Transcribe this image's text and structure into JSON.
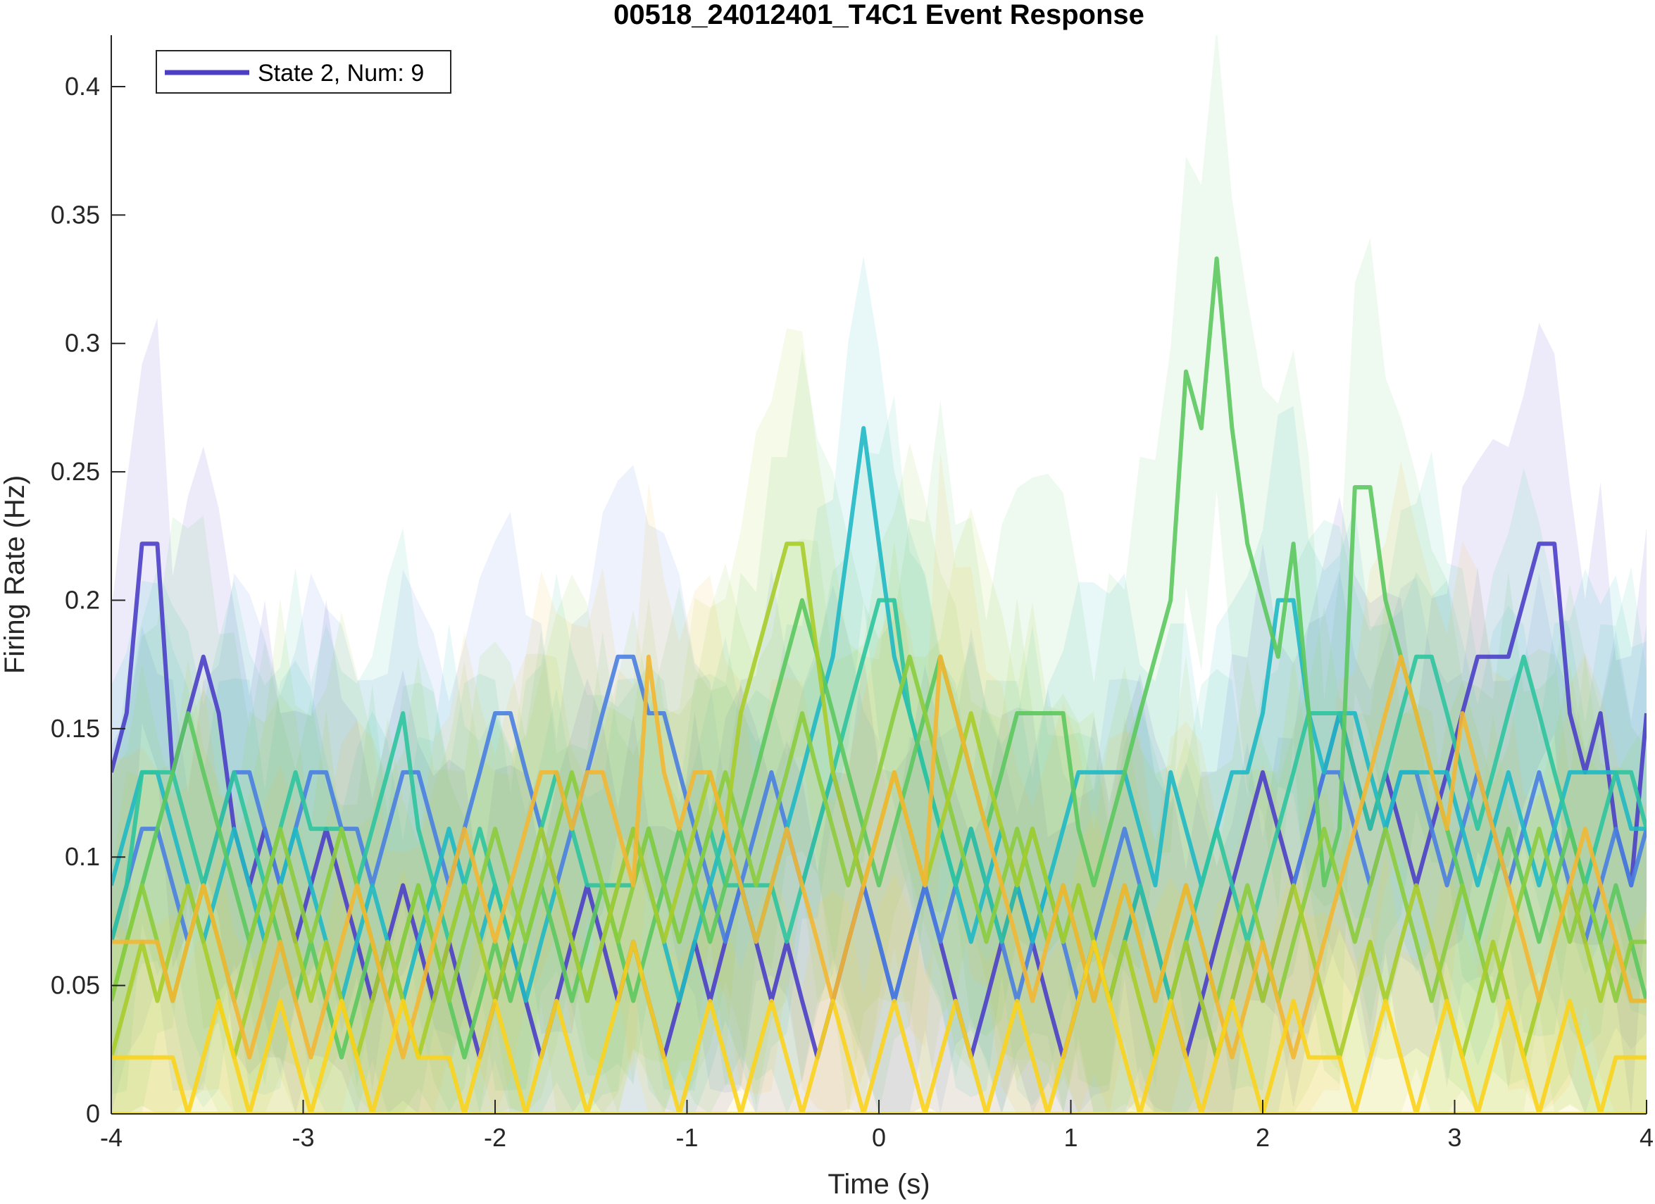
{
  "chart_data": {
    "type": "line",
    "title": "00518_24012401_T4C1 Event Response",
    "xlabel": "Time (s)",
    "ylabel": "Firing Rate (Hz)",
    "xlim": [
      -4,
      4
    ],
    "ylim": [
      0,
      0.42
    ],
    "xticks": [
      -4,
      -3,
      -2,
      -1,
      0,
      1,
      2,
      3,
      4
    ],
    "xtick_labels": [
      "-4",
      "-3",
      "-2",
      "-1",
      "0",
      "1",
      "2",
      "3",
      "4"
    ],
    "yticks": [
      0,
      0.05,
      0.1,
      0.15,
      0.2,
      0.25,
      0.3,
      0.35,
      0.4
    ],
    "ytick_labels": [
      "0",
      "0.05",
      "0.1",
      "0.15",
      "0.2",
      "0.25",
      "0.3",
      "0.35",
      "0.4"
    ],
    "grid": false,
    "legend": {
      "placement": "top-left",
      "entries": [
        {
          "label": "State 2, Num: 9",
          "color": "#4b3fc6"
        }
      ]
    },
    "series": [
      {
        "color": "#4b3fc6",
        "band": 0.09,
        "values": [
          0.133,
          0.156,
          0.222,
          0.222,
          0.133,
          0.156,
          0.178,
          0.156,
          0.111,
          0.089,
          0.111,
          0.089,
          0.067,
          0.089,
          0.111,
          0.089,
          0.067,
          0.044,
          0.067,
          0.089,
          0.067,
          0.044,
          0.067,
          0.044,
          0.022,
          0.044,
          0.067,
          0.044,
          0.022,
          0.044,
          0.067,
          0.089,
          0.067,
          0.044,
          0.067,
          0.044,
          0.022,
          0.044,
          0.067,
          0.044,
          0.067,
          0.089,
          0.067,
          0.044,
          0.067,
          0.044,
          0.022,
          0.044,
          0.067,
          0.089,
          0.067,
          0.044,
          0.067,
          0.089,
          0.067,
          0.044,
          0.022,
          0.044,
          0.067,
          0.089,
          0.067,
          0.044,
          0.022,
          0.044,
          0.067,
          0.044,
          0.067,
          0.089,
          0.067,
          0.044,
          0.022,
          0.044,
          0.067,
          0.089,
          0.111,
          0.133,
          0.111,
          0.089,
          0.111,
          0.133,
          0.156,
          0.133,
          0.111,
          0.133,
          0.111,
          0.089,
          0.111,
          0.133,
          0.156,
          0.178,
          0.178,
          0.178,
          0.2,
          0.222,
          0.222,
          0.156,
          0.133,
          0.156,
          0.111,
          0.089,
          0.156
        ]
      },
      {
        "color": "#4a7fe0",
        "band": 0.08,
        "values": [
          0.067,
          0.089,
          0.111,
          0.111,
          0.089,
          0.067,
          0.089,
          0.111,
          0.133,
          0.133,
          0.111,
          0.089,
          0.111,
          0.133,
          0.133,
          0.111,
          0.111,
          0.089,
          0.111,
          0.133,
          0.133,
          0.111,
          0.089,
          0.111,
          0.133,
          0.156,
          0.156,
          0.133,
          0.111,
          0.089,
          0.111,
          0.133,
          0.156,
          0.178,
          0.178,
          0.156,
          0.156,
          0.133,
          0.111,
          0.089,
          0.067,
          0.089,
          0.111,
          0.133,
          0.111,
          0.089,
          0.111,
          0.133,
          0.111,
          0.089,
          0.067,
          0.044,
          0.067,
          0.089,
          0.067,
          0.089,
          0.111,
          0.089,
          0.067,
          0.044,
          0.067,
          0.089,
          0.067,
          0.044,
          0.067,
          0.089,
          0.111,
          0.089,
          0.067,
          0.044,
          0.067,
          0.044,
          0.022,
          0.044,
          0.067,
          0.044,
          0.067,
          0.089,
          0.111,
          0.133,
          0.133,
          0.111,
          0.089,
          0.111,
          0.133,
          0.133,
          0.111,
          0.089,
          0.111,
          0.133,
          0.111,
          0.089,
          0.111,
          0.133,
          0.111,
          0.089,
          0.067,
          0.089,
          0.111,
          0.089,
          0.111
        ]
      },
      {
        "color": "#20b8c4",
        "band": 0.08,
        "values": [
          0.089,
          0.111,
          0.133,
          0.133,
          0.111,
          0.089,
          0.067,
          0.089,
          0.111,
          0.089,
          0.067,
          0.089,
          0.111,
          0.089,
          0.067,
          0.044,
          0.067,
          0.089,
          0.067,
          0.044,
          0.067,
          0.089,
          0.111,
          0.089,
          0.067,
          0.089,
          0.067,
          0.044,
          0.067,
          0.089,
          0.067,
          0.044,
          0.067,
          0.089,
          0.111,
          0.089,
          0.067,
          0.044,
          0.067,
          0.089,
          0.111,
          0.089,
          0.067,
          0.089,
          0.111,
          0.133,
          0.156,
          0.178,
          0.222,
          0.267,
          0.222,
          0.178,
          0.156,
          0.133,
          0.111,
          0.089,
          0.067,
          0.089,
          0.111,
          0.089,
          0.067,
          0.089,
          0.111,
          0.133,
          0.133,
          0.133,
          0.133,
          0.111,
          0.089,
          0.133,
          0.111,
          0.089,
          0.111,
          0.133,
          0.133,
          0.156,
          0.2,
          0.2,
          0.156,
          0.133,
          0.156,
          0.156,
          0.133,
          0.111,
          0.133,
          0.133,
          0.133,
          0.133,
          0.111,
          0.089,
          0.111,
          0.133,
          0.111,
          0.089,
          0.111,
          0.133,
          0.133,
          0.133,
          0.133,
          0.111,
          0.111
        ]
      },
      {
        "color": "#2fc49e",
        "band": 0.08,
        "values": [
          0.067,
          0.089,
          0.133,
          0.133,
          0.133,
          0.111,
          0.089,
          0.111,
          0.133,
          0.111,
          0.089,
          0.111,
          0.133,
          0.111,
          0.111,
          0.111,
          0.089,
          0.111,
          0.133,
          0.156,
          0.111,
          0.089,
          0.067,
          0.089,
          0.111,
          0.089,
          0.067,
          0.089,
          0.111,
          0.133,
          0.111,
          0.089,
          0.089,
          0.089,
          0.089,
          0.111,
          0.089,
          0.067,
          0.089,
          0.111,
          0.089,
          0.089,
          0.089,
          0.089,
          0.067,
          0.089,
          0.111,
          0.133,
          0.156,
          0.178,
          0.2,
          0.2,
          0.156,
          0.133,
          0.111,
          0.089,
          0.111,
          0.089,
          0.067,
          0.089,
          0.111,
          0.089,
          0.067,
          0.089,
          0.067,
          0.044,
          0.067,
          0.089,
          0.067,
          0.044,
          0.067,
          0.089,
          0.111,
          0.089,
          0.067,
          0.089,
          0.111,
          0.133,
          0.156,
          0.156,
          0.156,
          0.133,
          0.111,
          0.133,
          0.156,
          0.178,
          0.178,
          0.156,
          0.133,
          0.111,
          0.133,
          0.156,
          0.178,
          0.156,
          0.133,
          0.111,
          0.089,
          0.111,
          0.133,
          0.133,
          0.111
        ]
      },
      {
        "color": "#5cc85e",
        "band": 0.1,
        "values": [
          0.044,
          0.067,
          0.089,
          0.111,
          0.133,
          0.156,
          0.133,
          0.111,
          0.089,
          0.067,
          0.089,
          0.067,
          0.044,
          0.067,
          0.044,
          0.022,
          0.044,
          0.067,
          0.044,
          0.067,
          0.089,
          0.067,
          0.044,
          0.022,
          0.044,
          0.067,
          0.044,
          0.067,
          0.089,
          0.067,
          0.044,
          0.067,
          0.089,
          0.067,
          0.044,
          0.067,
          0.089,
          0.111,
          0.089,
          0.067,
          0.089,
          0.111,
          0.133,
          0.156,
          0.178,
          0.2,
          0.178,
          0.156,
          0.133,
          0.111,
          0.089,
          0.111,
          0.133,
          0.156,
          0.178,
          0.156,
          0.133,
          0.111,
          0.133,
          0.156,
          0.156,
          0.156,
          0.156,
          0.111,
          0.089,
          0.111,
          0.133,
          0.156,
          0.178,
          0.2,
          0.289,
          0.267,
          0.333,
          0.267,
          0.222,
          0.2,
          0.178,
          0.222,
          0.156,
          0.089,
          0.111,
          0.244,
          0.244,
          0.2,
          0.178,
          0.156,
          0.133,
          0.111,
          0.089,
          0.067,
          0.089,
          0.111,
          0.089,
          0.067,
          0.089,
          0.111,
          0.089,
          0.067,
          0.089,
          0.067,
          0.044
        ]
      },
      {
        "color": "#8ccc3e",
        "band": 0.09,
        "values": [
          0.044,
          0.067,
          0.089,
          0.067,
          0.044,
          0.067,
          0.089,
          0.067,
          0.044,
          0.067,
          0.089,
          0.111,
          0.089,
          0.067,
          0.089,
          0.111,
          0.089,
          0.067,
          0.044,
          0.067,
          0.089,
          0.067,
          0.044,
          0.067,
          0.089,
          0.111,
          0.089,
          0.067,
          0.089,
          0.111,
          0.133,
          0.111,
          0.089,
          0.067,
          0.089,
          0.111,
          0.089,
          0.067,
          0.089,
          0.111,
          0.133,
          0.111,
          0.089,
          0.111,
          0.133,
          0.156,
          0.133,
          0.111,
          0.089,
          0.111,
          0.133,
          0.156,
          0.178,
          0.156,
          0.133,
          0.111,
          0.089,
          0.067,
          0.089,
          0.111,
          0.089,
          0.067,
          0.089,
          0.067,
          0.044,
          0.067,
          0.089,
          0.067,
          0.044,
          0.067,
          0.089,
          0.067,
          0.044,
          0.067,
          0.089,
          0.067,
          0.044,
          0.067,
          0.089,
          0.111,
          0.089,
          0.067,
          0.089,
          0.111,
          0.089,
          0.067,
          0.044,
          0.067,
          0.089,
          0.067,
          0.044,
          0.067,
          0.089,
          0.111,
          0.089,
          0.067,
          0.089,
          0.067,
          0.044,
          0.067,
          0.067
        ]
      },
      {
        "color": "#a8cc2a",
        "band": 0.09,
        "values": [
          0.022,
          0.044,
          0.067,
          0.044,
          0.067,
          0.089,
          0.067,
          0.044,
          0.022,
          0.044,
          0.067,
          0.089,
          0.067,
          0.044,
          0.067,
          0.044,
          0.022,
          0.044,
          0.067,
          0.044,
          0.022,
          0.044,
          0.067,
          0.089,
          0.067,
          0.044,
          0.067,
          0.089,
          0.111,
          0.089,
          0.067,
          0.044,
          0.067,
          0.089,
          0.111,
          0.089,
          0.067,
          0.089,
          0.111,
          0.133,
          0.111,
          0.156,
          0.178,
          0.2,
          0.222,
          0.222,
          0.178,
          0.133,
          0.111,
          0.089,
          0.111,
          0.133,
          0.111,
          0.089,
          0.111,
          0.133,
          0.156,
          0.133,
          0.111,
          0.089,
          0.111,
          0.089,
          0.067,
          0.089,
          0.067,
          0.044,
          0.067,
          0.044,
          0.022,
          0.044,
          0.067,
          0.044,
          0.022,
          0.044,
          0.067,
          0.044,
          0.067,
          0.089,
          0.067,
          0.044,
          0.022,
          0.044,
          0.067,
          0.044,
          0.067,
          0.089,
          0.067,
          0.044,
          0.022,
          0.044,
          0.067,
          0.044,
          0.022,
          0.044,
          0.067,
          0.089,
          0.067,
          0.044,
          0.067,
          0.044,
          0.044
        ]
      },
      {
        "color": "#f2b733",
        "band": 0.08,
        "values": [
          0.067,
          0.067,
          0.067,
          0.067,
          0.044,
          0.067,
          0.089,
          0.067,
          0.044,
          0.022,
          0.044,
          0.067,
          0.044,
          0.022,
          0.044,
          0.067,
          0.089,
          0.067,
          0.044,
          0.022,
          0.044,
          0.067,
          0.089,
          0.111,
          0.089,
          0.067,
          0.089,
          0.111,
          0.133,
          0.133,
          0.111,
          0.133,
          0.133,
          0.111,
          0.089,
          0.178,
          0.133,
          0.111,
          0.133,
          0.133,
          0.111,
          0.089,
          0.067,
          0.089,
          0.111,
          0.089,
          0.067,
          0.044,
          0.067,
          0.089,
          0.111,
          0.133,
          0.111,
          0.089,
          0.178,
          0.156,
          0.133,
          0.111,
          0.089,
          0.067,
          0.044,
          0.067,
          0.089,
          0.067,
          0.044,
          0.067,
          0.089,
          0.067,
          0.044,
          0.067,
          0.089,
          0.067,
          0.044,
          0.022,
          0.044,
          0.067,
          0.044,
          0.022,
          0.044,
          0.067,
          0.089,
          0.111,
          0.133,
          0.156,
          0.178,
          0.156,
          0.133,
          0.111,
          0.156,
          0.133,
          0.111,
          0.089,
          0.067,
          0.044,
          0.067,
          0.089,
          0.111,
          0.089,
          0.067,
          0.044,
          0.044
        ]
      },
      {
        "color": "#fbd31c",
        "band": 0.06,
        "values": [
          0.022,
          0.022,
          0.022,
          0.022,
          0.022,
          0.0,
          0.022,
          0.044,
          0.022,
          0.0,
          0.022,
          0.044,
          0.022,
          0.0,
          0.022,
          0.044,
          0.022,
          0.0,
          0.022,
          0.044,
          0.022,
          0.022,
          0.022,
          0.0,
          0.022,
          0.044,
          0.022,
          0.0,
          0.022,
          0.044,
          0.022,
          0.0,
          0.022,
          0.044,
          0.067,
          0.044,
          0.022,
          0.0,
          0.022,
          0.044,
          0.022,
          0.0,
          0.022,
          0.044,
          0.022,
          0.0,
          0.022,
          0.044,
          0.022,
          0.0,
          0.022,
          0.044,
          0.022,
          0.0,
          0.022,
          0.044,
          0.022,
          0.0,
          0.022,
          0.044,
          0.022,
          0.0,
          0.022,
          0.044,
          0.067,
          0.044,
          0.022,
          0.0,
          0.022,
          0.044,
          0.022,
          0.0,
          0.022,
          0.044,
          0.022,
          0.0,
          0.022,
          0.044,
          0.022,
          0.022,
          0.022,
          0.0,
          0.022,
          0.044,
          0.022,
          0.0,
          0.022,
          0.044,
          0.022,
          0.0,
          0.022,
          0.044,
          0.022,
          0.0,
          0.022,
          0.044,
          0.022,
          0.0,
          0.022,
          0.022,
          0.022
        ]
      },
      {
        "color": "#f5e41a",
        "band": 0.0,
        "values": [
          0,
          0,
          0,
          0,
          0,
          0,
          0,
          0,
          0,
          0,
          0,
          0,
          0,
          0,
          0,
          0,
          0,
          0,
          0,
          0,
          0,
          0,
          0,
          0,
          0,
          0,
          0,
          0,
          0,
          0,
          0,
          0,
          0,
          0,
          0,
          0,
          0,
          0,
          0,
          0,
          0,
          0,
          0,
          0,
          0,
          0,
          0,
          0,
          0,
          0,
          0,
          0,
          0,
          0,
          0,
          0,
          0,
          0,
          0,
          0,
          0,
          0,
          0,
          0,
          0,
          0,
          0,
          0,
          0,
          0,
          0,
          0,
          0,
          0,
          0,
          0,
          0,
          0,
          0,
          0,
          0,
          0,
          0,
          0,
          0,
          0,
          0,
          0,
          0,
          0,
          0,
          0,
          0,
          0,
          0,
          0,
          0,
          0,
          0,
          0,
          0
        ]
      }
    ]
  }
}
